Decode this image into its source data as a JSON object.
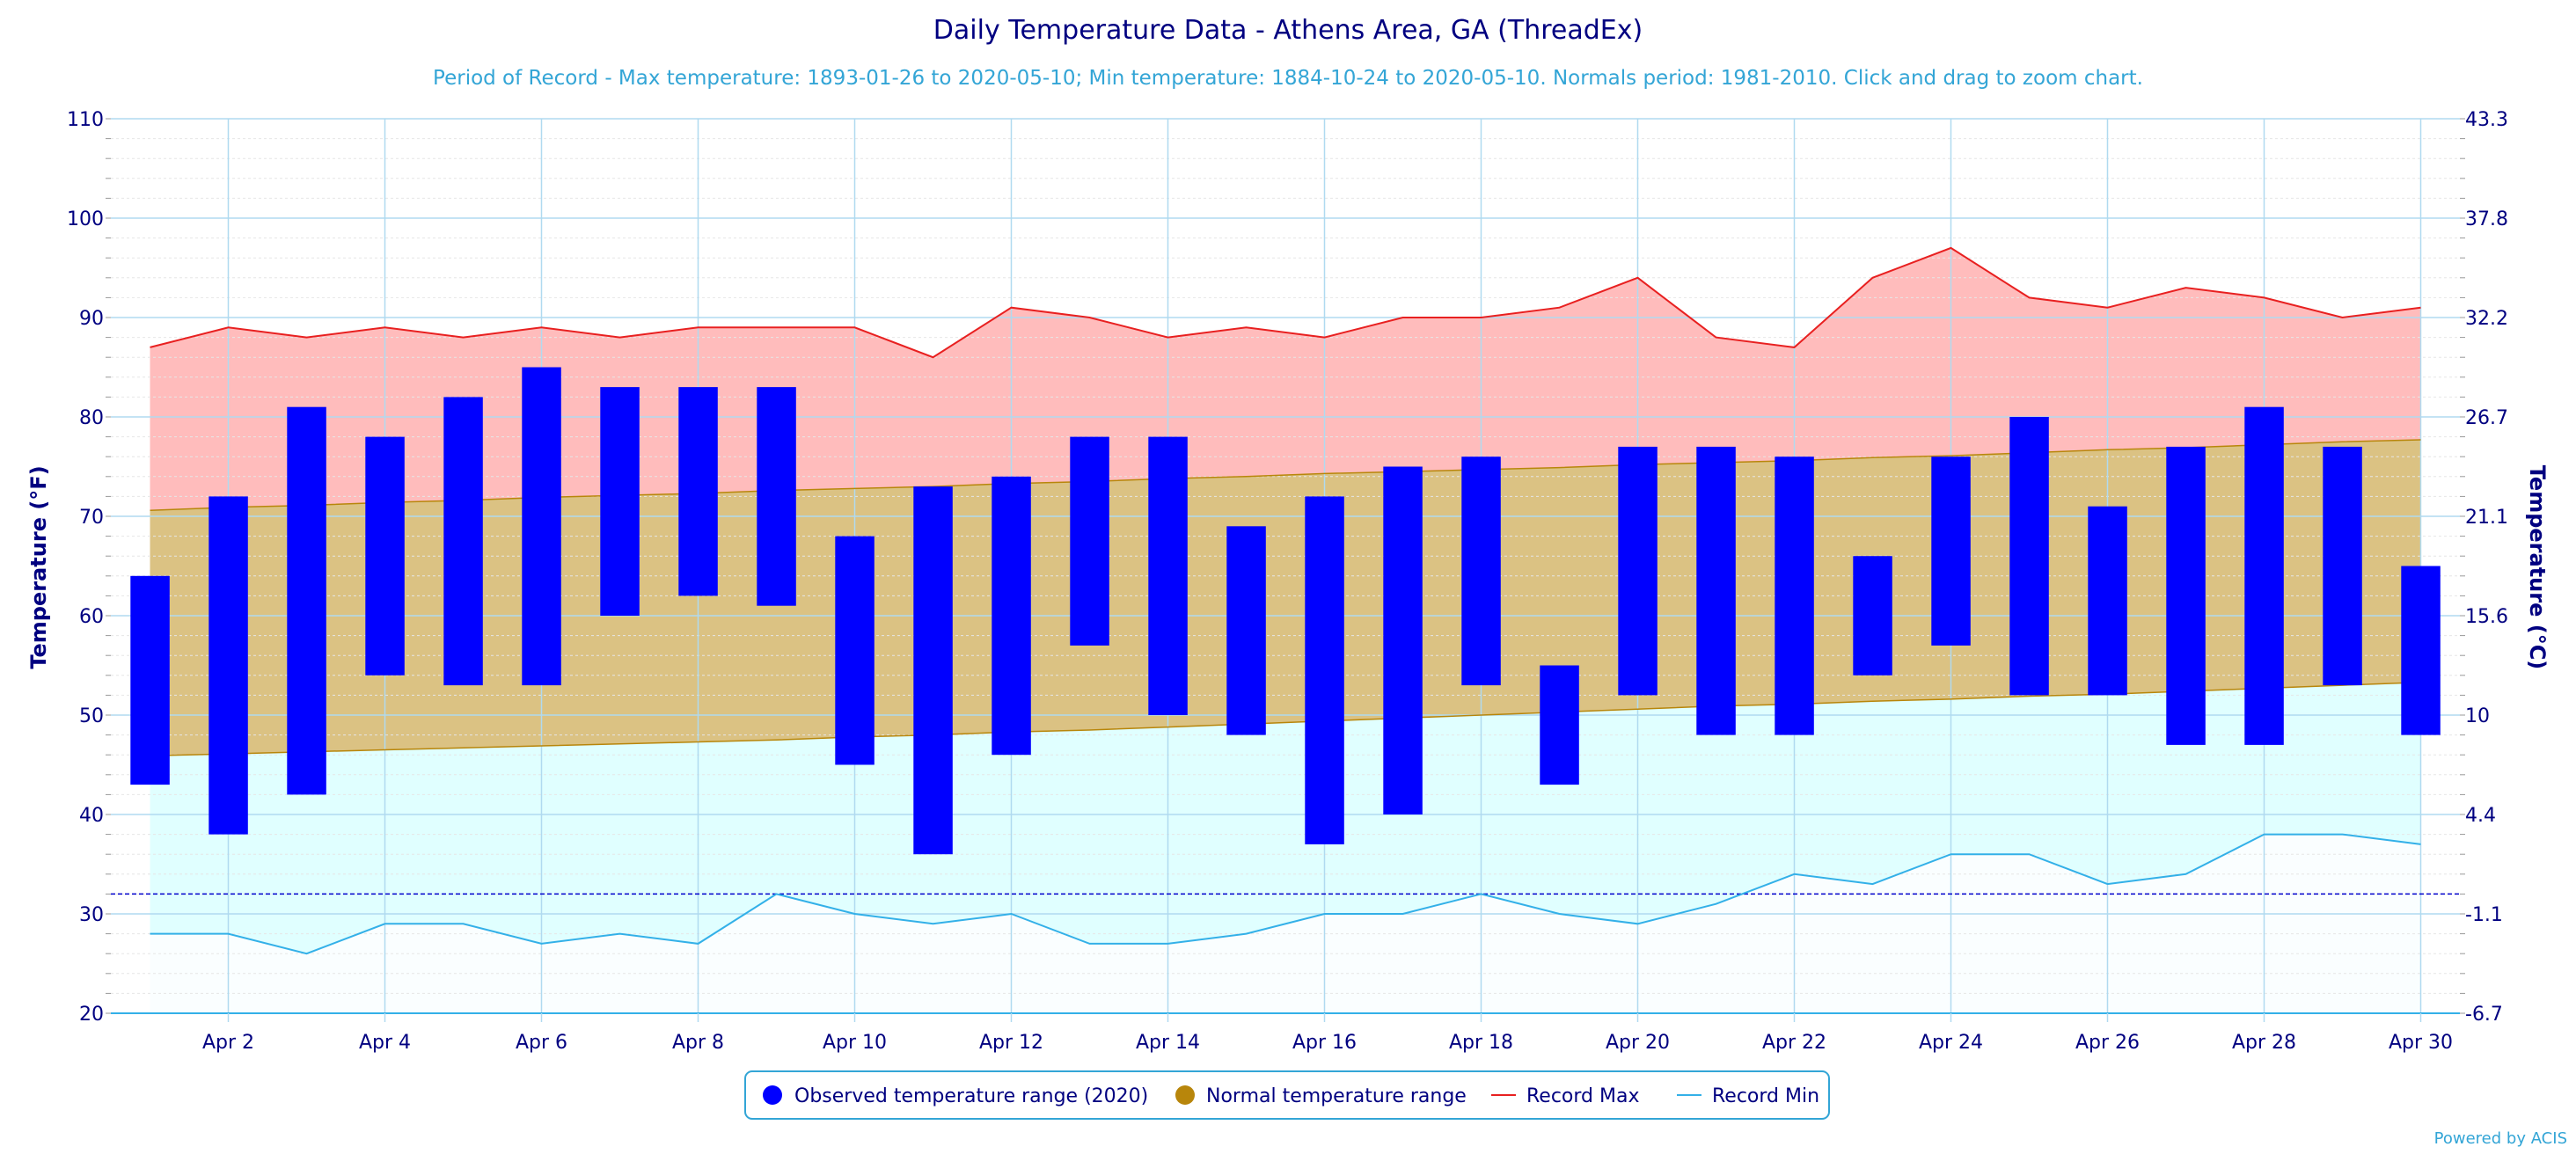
{
  "colors": {
    "observed": "#0000ff",
    "normal_band": "#dbc283",
    "normal_line": "#b8860b",
    "normal_marker": "#b8860b",
    "record_max": "#e82020",
    "record_max_fill": "#ffbcbc",
    "record_min": "#33b0e8",
    "record_min_fill": "#e0ffff",
    "freezing_line": "#0000cc",
    "grid": "#b0daf0",
    "minor_tick": "#999999",
    "text": "#000080",
    "subtitle": "#33a5d6"
  },
  "chart_data": {
    "type": "bar",
    "title": "Daily Temperature Data - Athens Area, GA (ThreadEx)",
    "subtitle": "Period of Record - Max temperature: 1893-01-26 to 2020-05-10; Min temperature: 1884-10-24 to 2020-05-10. Normals period: 1981-2010. Click and drag to zoom chart.",
    "ylabel": "Temperature (°F)",
    "ylabel_right": "Temperature (°C)",
    "ylim": [
      20,
      110
    ],
    "yticks": [
      20,
      30,
      40,
      50,
      60,
      70,
      80,
      90,
      100,
      110
    ],
    "yticks_right": [
      "-6.7",
      "-1.1",
      "4.4",
      "10",
      "15.6",
      "21.1",
      "26.7",
      "32.2",
      "37.8",
      "43.3"
    ],
    "x": [
      1,
      2,
      3,
      4,
      5,
      6,
      7,
      8,
      9,
      10,
      11,
      12,
      13,
      14,
      15,
      16,
      17,
      18,
      19,
      20,
      21,
      22,
      23,
      24,
      25,
      26,
      27,
      28,
      29,
      30
    ],
    "xlim": [
      0.5,
      30.5
    ],
    "xticks": [
      2,
      4,
      6,
      8,
      10,
      12,
      14,
      16,
      18,
      20,
      22,
      24,
      26,
      28,
      30
    ],
    "xtick_labels": [
      "Apr 2",
      "Apr 4",
      "Apr 6",
      "Apr 8",
      "Apr 10",
      "Apr 12",
      "Apr 14",
      "Apr 16",
      "Apr 18",
      "Apr 20",
      "Apr 22",
      "Apr 24",
      "Apr 26",
      "Apr 28",
      "Apr 30"
    ],
    "freezing_line": 32,
    "grid": true,
    "legend_position": "bottom-center",
    "series": [
      {
        "name": "Observed temperature range (2020)",
        "type": "columnrange",
        "low": [
          43,
          38,
          42,
          54,
          53,
          53,
          60,
          62,
          61,
          45,
          36,
          46,
          57,
          50,
          48,
          37,
          40,
          53,
          43,
          52,
          48,
          48,
          54,
          57,
          52,
          52,
          47,
          47,
          53,
          48
        ],
        "high": [
          64,
          72,
          81,
          78,
          82,
          85,
          83,
          83,
          83,
          68,
          73,
          74,
          78,
          78,
          69,
          72,
          75,
          76,
          55,
          77,
          77,
          76,
          66,
          76,
          80,
          71,
          77,
          81,
          77,
          65
        ]
      },
      {
        "name": "Normal temperature range",
        "type": "arearange",
        "low": [
          45.9,
          46.1,
          46.3,
          46.5,
          46.7,
          46.9,
          47.1,
          47.3,
          47.5,
          47.8,
          48.0,
          48.3,
          48.5,
          48.8,
          49.1,
          49.4,
          49.7,
          50.0,
          50.3,
          50.6,
          50.9,
          51.1,
          51.4,
          51.6,
          51.9,
          52.1,
          52.4,
          52.7,
          53.0,
          53.3
        ],
        "high": [
          70.6,
          70.9,
          71.1,
          71.4,
          71.6,
          71.9,
          72.1,
          72.3,
          72.6,
          72.8,
          73.0,
          73.3,
          73.5,
          73.8,
          74.0,
          74.3,
          74.5,
          74.7,
          74.9,
          75.2,
          75.4,
          75.6,
          75.9,
          76.1,
          76.4,
          76.7,
          76.9,
          77.2,
          77.5,
          77.7
        ]
      },
      {
        "name": "Record Max",
        "type": "line",
        "values": [
          87,
          89,
          88,
          89,
          88,
          89,
          88,
          89,
          89,
          89,
          86,
          91,
          90,
          88,
          89,
          88,
          90,
          90,
          91,
          94,
          88,
          87,
          94,
          97,
          92,
          91,
          93,
          92,
          90,
          91
        ]
      },
      {
        "name": "Record Min",
        "type": "line",
        "values": [
          28,
          28,
          26,
          29,
          29,
          27,
          28,
          27,
          32,
          30,
          29,
          30,
          27,
          27,
          28,
          30,
          30,
          32,
          30,
          29,
          31,
          34,
          33,
          36,
          36,
          33,
          34,
          38,
          38,
          37
        ]
      }
    ],
    "credit": "Powered by ACIS"
  }
}
